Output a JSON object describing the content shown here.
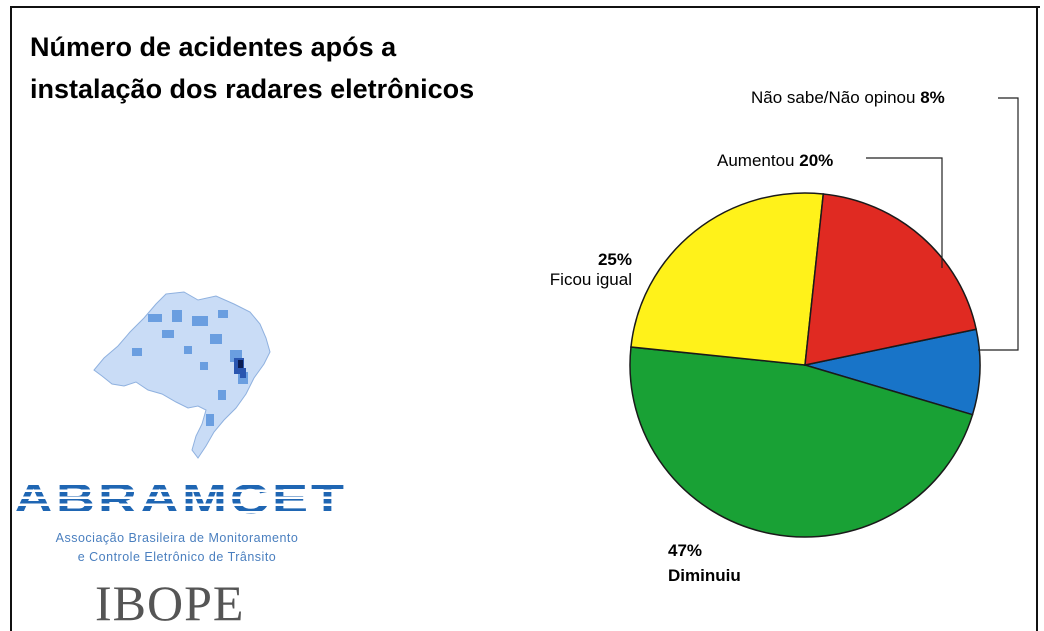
{
  "title_lines": [
    "Número de acidentes após a",
    "instalação dos radares eletrônicos"
  ],
  "chart_data": {
    "type": "pie",
    "title": "Número de acidentes após a instalação dos radares eletrônicos",
    "slices": [
      {
        "label": "Não sabe/Não opinou",
        "value": 8,
        "value_label": "8%",
        "color": "#1874c8"
      },
      {
        "label": "Diminuiu",
        "value": 47,
        "value_label": "47%",
        "color": "#19a135"
      },
      {
        "label": "Ficou igual",
        "value": 25,
        "value_label": "25%",
        "color": "#fff21a"
      },
      {
        "label": "Aumentou",
        "value": 20,
        "value_label": "20%",
        "color": "#e02a22"
      }
    ]
  },
  "logos": {
    "abramcet_name": "ABRAMCET",
    "abramcet_line1": "Associação Brasileira de Monitoramento",
    "abramcet_line2": "e Controle Eletrônico de Trânsito",
    "ibope": "IBOPE"
  }
}
